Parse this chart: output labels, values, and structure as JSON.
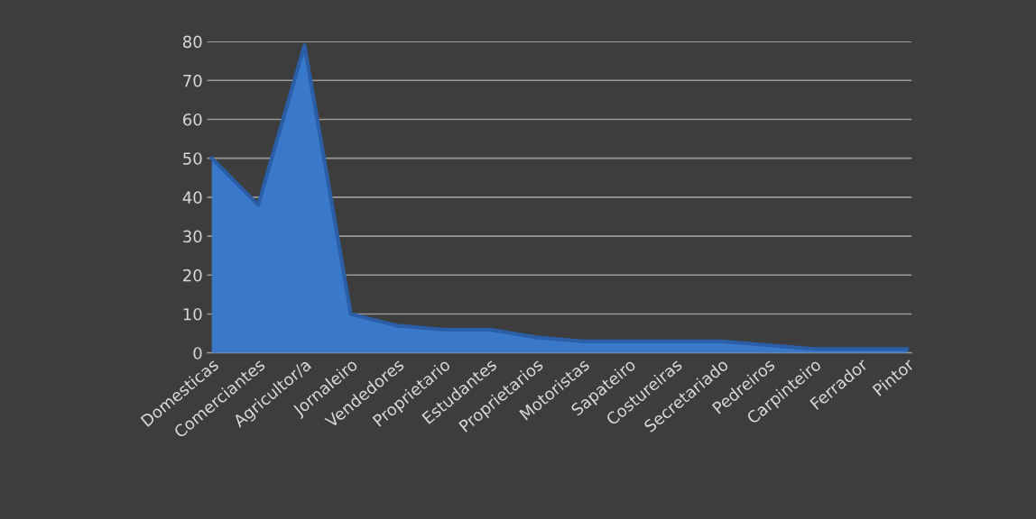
{
  "chart_data": {
    "type": "area",
    "categories": [
      "Domesticas",
      "Comerciantes",
      "Agricultor/a",
      "Jornaleiro",
      "Vendedores",
      "Proprietario",
      "Estudantes",
      "Proprietarios",
      "Motoristas",
      "Sapateiro",
      "Costureiras",
      "Secretariado",
      "Pedreiros",
      "Carpinteiro",
      "Ferrador",
      "Pintor"
    ],
    "values": [
      50,
      38,
      79,
      10,
      7,
      6,
      6,
      4,
      3,
      3,
      3,
      3,
      2,
      1,
      1,
      1
    ],
    "color": "#3a78c9",
    "ylim": [
      0,
      80
    ],
    "yticks": [
      0,
      10,
      20,
      30,
      40,
      50,
      60,
      70,
      80
    ],
    "grid": "y",
    "legend": false
  }
}
